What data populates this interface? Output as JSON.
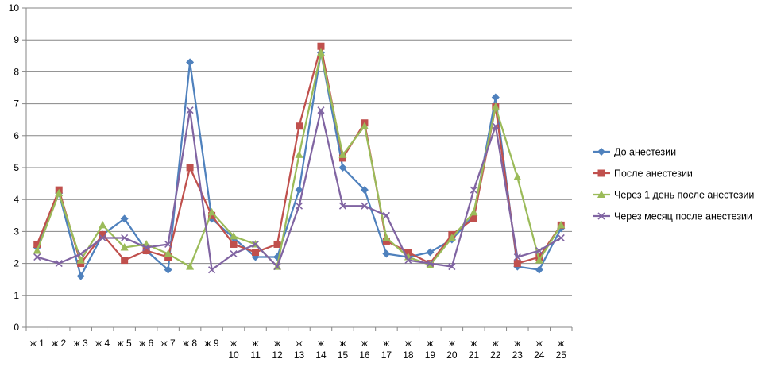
{
  "chart_data": {
    "type": "line",
    "title": "",
    "xlabel": "",
    "ylabel": "",
    "ylim": [
      0,
      10
    ],
    "yticks": [
      0,
      1,
      2,
      3,
      4,
      5,
      6,
      7,
      8,
      9,
      10
    ],
    "grid": "horizontal",
    "legend_position": "right",
    "categories": [
      [
        "ж 1"
      ],
      [
        "ж 2"
      ],
      [
        "ж 3"
      ],
      [
        "ж 4"
      ],
      [
        "ж 5"
      ],
      [
        "ж 6"
      ],
      [
        "ж 7"
      ],
      [
        "ж 8"
      ],
      [
        "ж 9"
      ],
      [
        "ж",
        "10"
      ],
      [
        "ж",
        "11"
      ],
      [
        "ж",
        "12"
      ],
      [
        "ж",
        "13"
      ],
      [
        "ж",
        "14"
      ],
      [
        "ж",
        "15"
      ],
      [
        "ж",
        "16"
      ],
      [
        "ж",
        "17"
      ],
      [
        "ж",
        "18"
      ],
      [
        "ж",
        "19"
      ],
      [
        "ж",
        "20"
      ],
      [
        "ж",
        "21"
      ],
      [
        "ж",
        "22"
      ],
      [
        "ж",
        "23"
      ],
      [
        "ж",
        "24"
      ],
      [
        "ж",
        "25"
      ]
    ],
    "series": [
      {
        "name": "До анестезии",
        "color": "#4F81BD",
        "marker": "diamond",
        "values": [
          2.5,
          4.2,
          1.6,
          2.9,
          3.4,
          2.4,
          1.8,
          8.3,
          3.4,
          2.8,
          2.2,
          2.2,
          4.3,
          8.6,
          5.0,
          4.3,
          2.3,
          2.2,
          2.35,
          2.75,
          3.5,
          7.2,
          1.9,
          1.8,
          3.1
        ]
      },
      {
        "name": "После анестезии",
        "color": "#C0504D",
        "marker": "square",
        "values": [
          2.6,
          4.3,
          2.0,
          2.9,
          2.1,
          2.4,
          2.2,
          5.0,
          3.5,
          2.6,
          2.35,
          2.6,
          6.3,
          8.8,
          5.3,
          6.4,
          2.7,
          2.35,
          2.0,
          2.9,
          3.4,
          6.9,
          2.0,
          2.2,
          3.2
        ]
      },
      {
        "name": "Через 1 день после анестезии",
        "color": "#9BBB59",
        "marker": "triangle",
        "values": [
          2.4,
          4.2,
          2.1,
          3.2,
          2.5,
          2.6,
          2.3,
          1.9,
          3.6,
          2.85,
          2.6,
          1.9,
          5.4,
          8.6,
          5.4,
          6.3,
          2.8,
          2.2,
          1.95,
          2.8,
          3.6,
          6.9,
          4.7,
          2.1,
          3.2
        ]
      },
      {
        "name": "Через месяц после анестезии",
        "color": "#8064A2",
        "marker": "x",
        "values": [
          2.2,
          2.0,
          2.3,
          2.8,
          2.8,
          2.5,
          2.6,
          6.8,
          1.8,
          2.3,
          2.6,
          1.9,
          3.8,
          6.8,
          3.8,
          3.8,
          3.5,
          2.1,
          2.0,
          1.9,
          4.3,
          6.3,
          2.2,
          2.4,
          2.8
        ]
      }
    ]
  }
}
